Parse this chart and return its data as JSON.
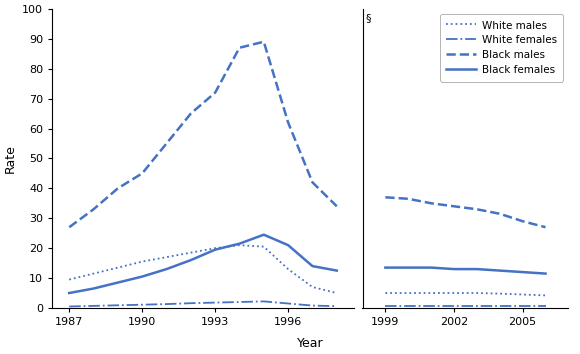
{
  "left_years": [
    1987,
    1988,
    1989,
    1990,
    1991,
    1992,
    1993,
    1994,
    1995,
    1996,
    1997,
    1998
  ],
  "right_years": [
    1999,
    2000,
    2001,
    2002,
    2003,
    2004,
    2005,
    2006
  ],
  "white_males_left": [
    9.5,
    11.5,
    13.5,
    15.5,
    17.0,
    18.5,
    20.0,
    21.0,
    20.5,
    13.0,
    7.0,
    5.0
  ],
  "white_males_right": [
    5.0,
    5.0,
    5.0,
    5.0,
    5.0,
    4.8,
    4.5,
    4.2
  ],
  "white_females_left": [
    0.5,
    0.7,
    0.9,
    1.1,
    1.3,
    1.6,
    1.8,
    2.0,
    2.2,
    1.5,
    0.8,
    0.6
  ],
  "white_females_right": [
    0.7,
    0.7,
    0.7,
    0.7,
    0.7,
    0.7,
    0.7,
    0.7
  ],
  "black_males_left": [
    27.0,
    33.0,
    40.0,
    45.0,
    55.0,
    65.0,
    72.0,
    87.0,
    89.0,
    62.0,
    42.0,
    34.0
  ],
  "black_males_right": [
    37.0,
    36.5,
    35.0,
    34.0,
    33.0,
    31.5,
    29.0,
    27.0
  ],
  "black_females_left": [
    5.0,
    6.5,
    8.5,
    10.5,
    13.0,
    16.0,
    19.5,
    21.5,
    24.5,
    21.0,
    14.0,
    12.5
  ],
  "black_females_right": [
    13.5,
    13.5,
    13.5,
    13.0,
    13.0,
    12.5,
    12.0,
    11.5
  ],
  "ylim": [
    0,
    100
  ],
  "yticks": [
    0,
    10,
    20,
    30,
    40,
    50,
    60,
    70,
    80,
    90,
    100
  ],
  "left_xticks": [
    1987,
    1990,
    1993,
    1996
  ],
  "right_xticks": [
    1999,
    2002,
    2005
  ],
  "color": "#4472C4",
  "ylabel": "Rate",
  "xlabel": "Year",
  "legend_labels": [
    "White males",
    "White females",
    "Black males",
    "Black females"
  ],
  "section_symbol": "§",
  "linestyles": [
    "dotted",
    "dashdot",
    "dashed",
    "solid"
  ],
  "linewidths": [
    1.3,
    1.3,
    1.8,
    1.8
  ],
  "left_xlim": [
    1986.3,
    1998.7
  ],
  "right_xlim": [
    1998.0,
    2007.0
  ]
}
